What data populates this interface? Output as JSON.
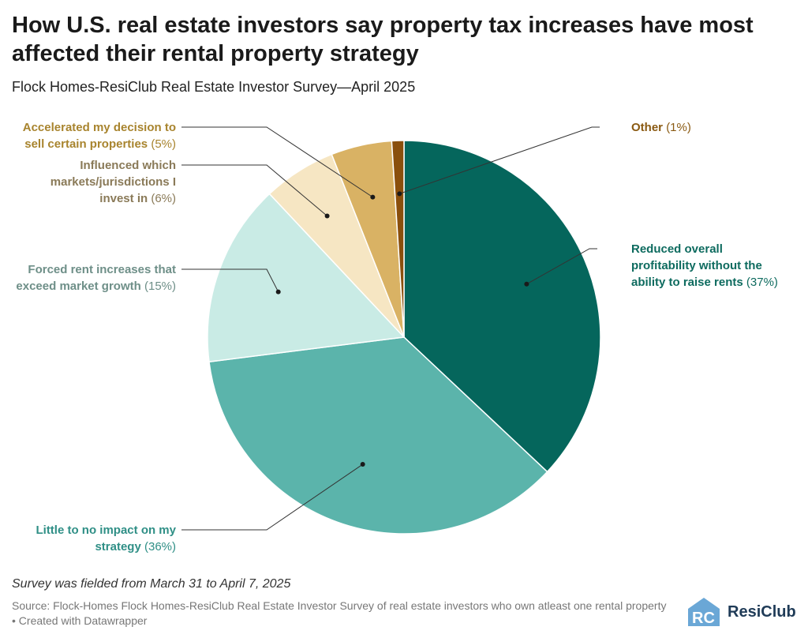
{
  "title": "How U.S. real estate investors say property tax increases have most affected their rental property strategy",
  "subtitle": "Flock Homes-ResiClub Real Estate Investor Survey—April 2025",
  "note": "Survey was fielded from March 31 to April 7, 2025",
  "source": "Source: Flock-Homes Flock Homes-ResiClub Real Estate Investor Survey of real estate investors who own atleast one rental property • Created with Datawrapper",
  "logo": {
    "text": "ResiClub",
    "icon": "rc-house-logo"
  },
  "chart_data": {
    "type": "pie",
    "unit": "%",
    "slices": [
      {
        "label": "Reduced overall profitability without the ability to raise rents",
        "label_lines": [
          "Reduced overall",
          "profitability without the",
          "ability to raise rents"
        ],
        "pct_text": "(37%)",
        "value": 37,
        "color": "#05665c",
        "text_color": "#0e6b5f"
      },
      {
        "label": "Little to no impact on my strategy",
        "label_lines": [
          "Little to no impact on my",
          "strategy"
        ],
        "pct_text": "(36%)",
        "value": 36,
        "color": "#5bb4ab",
        "text_color": "#2f8f86"
      },
      {
        "label": "Forced rent increases that exceed market growth",
        "label_lines": [
          "Forced rent increases that",
          "exceed market growth"
        ],
        "pct_text": "(15%)",
        "value": 15,
        "color": "#c9ebe5",
        "text_color": "#6e8f88"
      },
      {
        "label": "Influenced which markets/jurisdictions I invest in",
        "label_lines": [
          "Influenced which",
          "markets/jurisdictions I",
          "invest in"
        ],
        "pct_text": "(6%)",
        "value": 6,
        "color": "#f6e6c3",
        "text_color": "#8a7a58"
      },
      {
        "label": "Accelerated my decision to sell certain properties",
        "label_lines": [
          "Accelerated my decision to",
          "sell certain properties"
        ],
        "pct_text": "(5%)",
        "value": 5,
        "color": "#d9b264",
        "text_color": "#a8842e"
      },
      {
        "label": "Other",
        "label_lines": [
          "Other"
        ],
        "pct_text": "(1%)",
        "value": 1,
        "color": "#8a4f0c",
        "text_color": "#8a5a12"
      }
    ]
  }
}
